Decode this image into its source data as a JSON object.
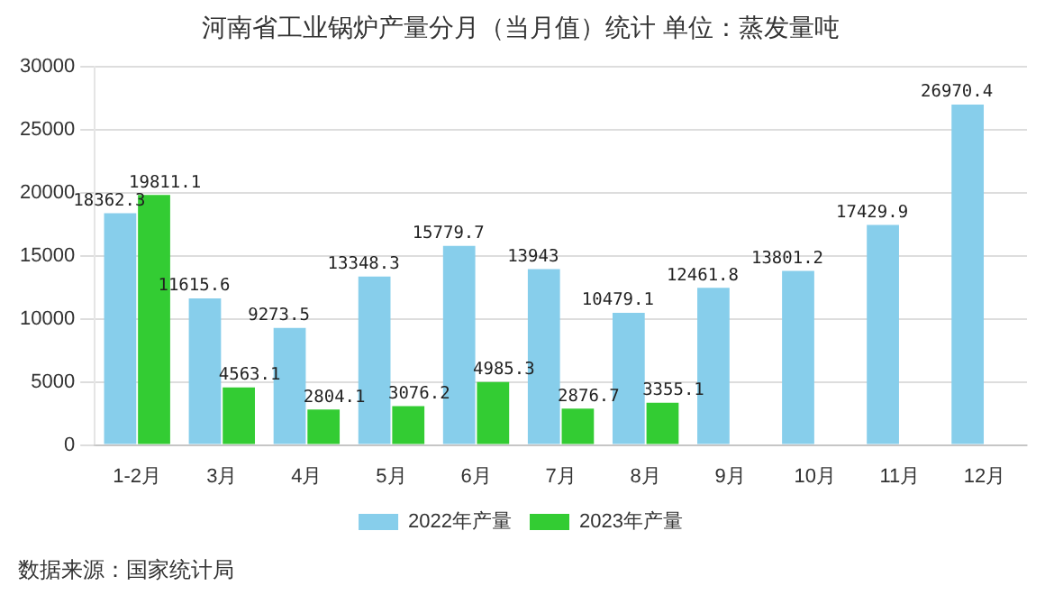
{
  "chart_data": {
    "type": "bar",
    "title": "河南省工业锅炉产量分月（当月值）统计 单位：蒸发量吨",
    "categories": [
      "1-2月",
      "3月",
      "4月",
      "5月",
      "6月",
      "7月",
      "8月",
      "9月",
      "10月",
      "11月",
      "12月"
    ],
    "series": [
      {
        "name": "2022年产量",
        "color": "#87ceeb",
        "values": [
          18362.3,
          11615.6,
          9273.5,
          13348.3,
          15779.7,
          13943,
          10479.1,
          12461.8,
          13801.2,
          17429.9,
          26970.4
        ]
      },
      {
        "name": "2023年产量",
        "color": "#33cc33",
        "values": [
          19811.1,
          4563.1,
          2804.1,
          3076.2,
          4985.3,
          2876.7,
          3355.1,
          null,
          null,
          null,
          null
        ]
      }
    ],
    "ylim": [
      0,
      30000
    ],
    "yticks": [
      0,
      5000,
      10000,
      15000,
      20000,
      25000,
      30000
    ],
    "grid": "y",
    "legend": "bottom",
    "data_labels": true,
    "annotations": [
      "数据来源：国家统计局"
    ]
  }
}
